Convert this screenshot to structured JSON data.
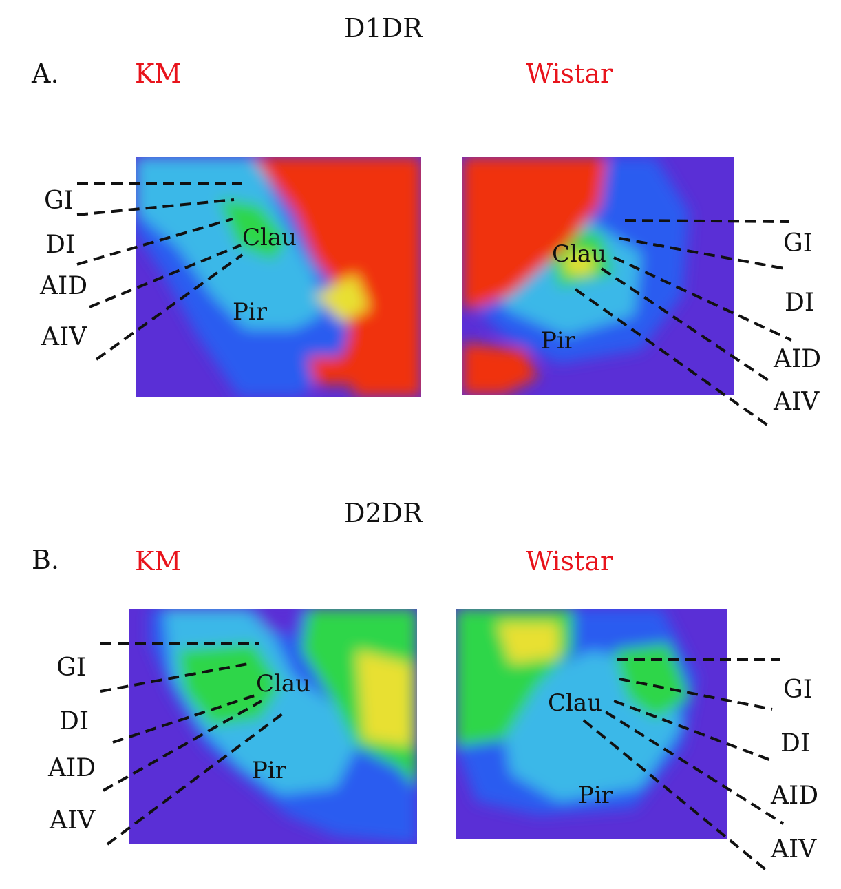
{
  "figure": {
    "panels": [
      {
        "id": "A",
        "title": "D1DR",
        "letter": "A.",
        "left_strain": "KM",
        "right_strain": "Wistar",
        "region_labels": [
          "GI",
          "DI",
          "AID",
          "AIV"
        ],
        "inner_labels": {
          "clau": "Clau",
          "pir": "Pir"
        }
      },
      {
        "id": "B",
        "title": "D2DR",
        "letter": "B.",
        "left_strain": "KM",
        "right_strain": "Wistar",
        "region_labels": [
          "GI",
          "DI",
          "AID",
          "AIV"
        ],
        "inner_labels": {
          "clau": "Clau",
          "pir": "Pir"
        }
      }
    ]
  },
  "colors": {
    "strain_label": "#e8141c",
    "background": "#5a2fd6",
    "low": "#2a5cf0",
    "mid": "#3ab8e8",
    "green": "#2fd64a",
    "yellow": "#e8e030",
    "high": "#f03010"
  }
}
